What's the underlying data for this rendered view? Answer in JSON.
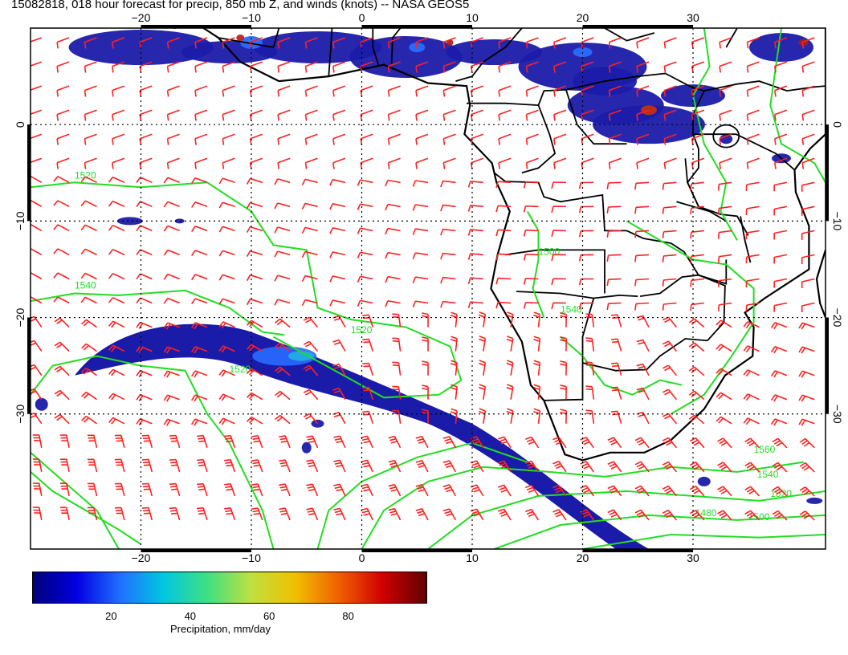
{
  "title": "15082818, 018 hour forecast for precip, 850 mb Z, and winds (knots) -- NASA GEOS5",
  "map": {
    "lon_range": [
      -30,
      42
    ],
    "lat_range": [
      -44,
      10
    ],
    "lon_ticks": [
      {
        "value": -20,
        "label": "−20"
      },
      {
        "value": -10,
        "label": "−10"
      },
      {
        "value": 0,
        "label": "0"
      },
      {
        "value": 10,
        "label": "10"
      },
      {
        "value": 20,
        "label": "20"
      },
      {
        "value": 30,
        "label": "30"
      }
    ],
    "lat_ticks": [
      {
        "value": 0,
        "label": "0"
      },
      {
        "value": -10,
        "label": "−10"
      },
      {
        "value": -20,
        "label": "−20"
      },
      {
        "value": -30,
        "label": "−30"
      }
    ],
    "contour_labels": [
      "1520",
      "1540",
      "1520",
      "1500",
      "1520",
      "1540",
      "1560",
      "1540",
      "1520",
      "1500",
      "1480"
    ],
    "colors": {
      "wind_barbs": "#ff2020",
      "contours": "#22dd22",
      "coastlines": "#000000",
      "precip_low": "#000088",
      "precip_high": "#6b0000"
    }
  },
  "colorbar": {
    "label": "Precipitation, mm/day",
    "ticks": [
      "20",
      "40",
      "60",
      "80"
    ],
    "range": [
      0,
      100
    ],
    "stops": [
      "#00007a",
      "#0000e0",
      "#2070ff",
      "#00c8e0",
      "#40e080",
      "#c0e040",
      "#f0c000",
      "#f06000",
      "#d00000",
      "#600000"
    ]
  }
}
